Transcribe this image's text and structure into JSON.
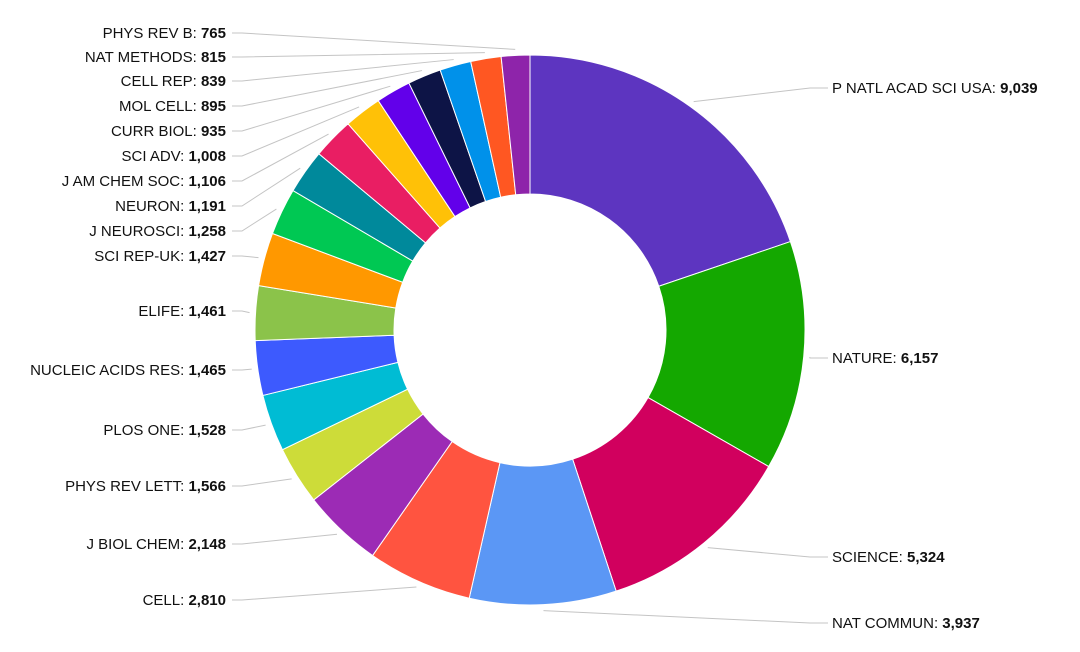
{
  "chart_data": {
    "type": "pie",
    "title": "",
    "donut": true,
    "separator": ": ",
    "slices": [
      {
        "label": "P NATL ACAD SCI USA",
        "value": 9039,
        "display": "9,039",
        "color": "#5d35c0"
      },
      {
        "label": "NATURE",
        "value": 6157,
        "display": "6,157",
        "color": "#14a800"
      },
      {
        "label": "SCIENCE",
        "value": 5324,
        "display": "5,324",
        "color": "#d1005e"
      },
      {
        "label": "NAT COMMUN",
        "value": 3937,
        "display": "3,937",
        "color": "#5b97f5"
      },
      {
        "label": "CELL",
        "value": 2810,
        "display": "2,810",
        "color": "#ff5440"
      },
      {
        "label": "J BIOL CHEM",
        "value": 2148,
        "display": "2,148",
        "color": "#9c2bb5"
      },
      {
        "label": "PHYS REV LETT",
        "value": 1566,
        "display": "1,566",
        "color": "#cddc39"
      },
      {
        "label": "PLOS ONE",
        "value": 1528,
        "display": "1,528",
        "color": "#00bcd4"
      },
      {
        "label": "NUCLEIC ACIDS RES",
        "value": 1465,
        "display": "1,465",
        "color": "#3d5afe"
      },
      {
        "label": "ELIFE",
        "value": 1461,
        "display": "1,461",
        "color": "#8bc34a"
      },
      {
        "label": "SCI REP-UK",
        "value": 1427,
        "display": "1,427",
        "color": "#ff9800"
      },
      {
        "label": "J NEUROSCI",
        "value": 1258,
        "display": "1,258",
        "color": "#00c853"
      },
      {
        "label": "NEURON",
        "value": 1191,
        "display": "1,191",
        "color": "#00899b"
      },
      {
        "label": "J AM CHEM SOC",
        "value": 1106,
        "display": "1,106",
        "color": "#e91e63"
      },
      {
        "label": "SCI ADV",
        "value": 1008,
        "display": "1,008",
        "color": "#ffc107"
      },
      {
        "label": "CURR BIOL",
        "value": 935,
        "display": "935",
        "color": "#6200ea"
      },
      {
        "label": "MOL CELL",
        "value": 895,
        "display": "895",
        "color": "#0d1446"
      },
      {
        "label": "CELL REP",
        "value": 839,
        "display": "839",
        "color": "#0091ea"
      },
      {
        "label": "NAT METHODS",
        "value": 815,
        "display": "815",
        "color": "#ff5722"
      },
      {
        "label": "PHYS REV B",
        "value": 765,
        "display": "765",
        "color": "#8e24aa"
      }
    ]
  }
}
